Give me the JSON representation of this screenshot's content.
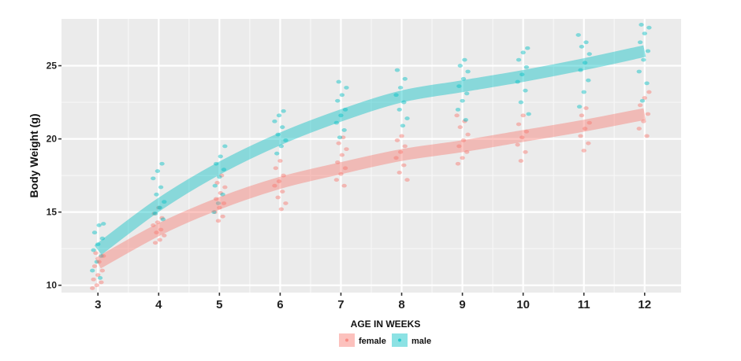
{
  "chart_data": {
    "type": "line",
    "xlabel": "AGE IN WEEKS",
    "ylabel": "Body Weight (g)",
    "x": [
      3,
      4,
      5,
      6,
      7,
      8,
      9,
      10,
      11,
      12
    ],
    "x_ticks": [
      "3",
      "4",
      "5",
      "6",
      "7",
      "8",
      "9",
      "10",
      "11",
      "12"
    ],
    "y_ticks": [
      "10",
      "15",
      "20",
      "25"
    ],
    "ylim": [
      9.5,
      28.2
    ],
    "xlim": [
      2.4,
      12.6
    ],
    "grid": true,
    "legend": {
      "title": "AGE IN WEEKS",
      "placement": "bottom"
    },
    "series": [
      {
        "name": "female",
        "color": "#f8766d",
        "trend": [
          11.5,
          13.8,
          15.6,
          17.0,
          18.0,
          18.9,
          19.5,
          20.2,
          20.9,
          21.7
        ],
        "points": [
          {
            "x": 3,
            "y": [
              9.8,
              10.0,
              10.2,
              10.4,
              10.7,
              11.0,
              11.3,
              11.6,
              12.0,
              12.2
            ]
          },
          {
            "x": 4,
            "y": [
              12.9,
              13.1,
              13.4,
              13.6,
              13.8,
              14.1,
              14.3,
              14.6,
              14.9,
              15.3
            ]
          },
          {
            "x": 5,
            "y": [
              14.4,
              14.7,
              15.0,
              15.3,
              15.6,
              15.9,
              16.3,
              16.7,
              17.0,
              17.5
            ]
          },
          {
            "x": 6,
            "y": [
              15.2,
              15.6,
              16.0,
              16.4,
              16.8,
              17.1,
              17.5,
              18.0,
              18.5
            ]
          },
          {
            "x": 7,
            "y": [
              16.8,
              17.2,
              17.6,
              18.0,
              18.4,
              18.9,
              19.3,
              19.7,
              20.1
            ]
          },
          {
            "x": 8,
            "y": [
              17.2,
              17.7,
              18.2,
              18.7,
              19.1,
              19.5,
              19.9,
              20.2
            ]
          },
          {
            "x": 9,
            "y": [
              18.3,
              18.7,
              19.1,
              19.5,
              19.9,
              20.3,
              20.8,
              21.2,
              21.6
            ]
          },
          {
            "x": 10,
            "y": [
              18.5,
              19.1,
              19.6,
              20.1,
              20.5,
              21.0,
              21.6
            ]
          },
          {
            "x": 11,
            "y": [
              19.2,
              19.7,
              20.2,
              20.7,
              21.1,
              21.6,
              22.1
            ]
          },
          {
            "x": 12,
            "y": [
              20.2,
              20.7,
              21.2,
              21.7,
              22.3,
              22.8,
              23.2
            ]
          }
        ]
      },
      {
        "name": "male",
        "color": "#00bfc4",
        "trend": [
          12.4,
          15.5,
          18.0,
          20.0,
          21.6,
          22.9,
          23.6,
          24.3,
          25.1,
          26.0
        ],
        "points": [
          {
            "x": 3,
            "y": [
              10.5,
              11.0,
              11.6,
              12.0,
              12.4,
              12.8,
              13.2,
              13.6,
              14.1,
              14.2
            ]
          },
          {
            "x": 4,
            "y": [
              14.5,
              14.9,
              15.3,
              15.7,
              16.2,
              16.7,
              17.3,
              17.8,
              18.3
            ]
          },
          {
            "x": 5,
            "y": [
              15.0,
              15.6,
              16.2,
              16.8,
              17.4,
              17.9,
              18.3,
              18.8,
              19.5
            ]
          },
          {
            "x": 6,
            "y": [
              19.0,
              19.5,
              19.9,
              20.3,
              20.8,
              21.2,
              21.6,
              21.9
            ]
          },
          {
            "x": 7,
            "y": [
              20.1,
              20.6,
              21.1,
              21.6,
              22.0,
              22.6,
              23.0,
              23.5,
              23.9
            ]
          },
          {
            "x": 8,
            "y": [
              20.9,
              21.4,
              22.0,
              22.5,
              23.0,
              23.5,
              24.1,
              24.7
            ]
          },
          {
            "x": 9,
            "y": [
              21.3,
              22.0,
              22.6,
              23.1,
              23.6,
              24.1,
              24.6,
              25.0,
              25.4
            ]
          },
          {
            "x": 10,
            "y": [
              21.7,
              22.5,
              23.3,
              23.9,
              24.4,
              24.9,
              25.4,
              25.9,
              26.2
            ]
          },
          {
            "x": 11,
            "y": [
              22.2,
              23.2,
              24.0,
              24.7,
              25.2,
              25.8,
              26.3,
              26.6,
              27.1
            ]
          },
          {
            "x": 12,
            "y": [
              22.6,
              23.8,
              24.6,
              25.4,
              26.0,
              26.6,
              27.2,
              27.6,
              27.8
            ]
          }
        ]
      }
    ]
  }
}
